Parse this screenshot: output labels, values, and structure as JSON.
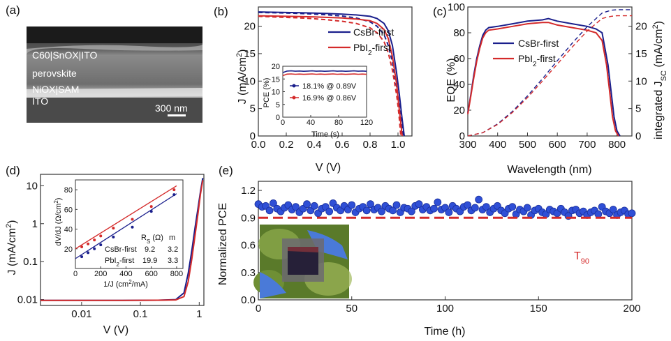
{
  "panels": {
    "a": {
      "label": "(a)",
      "layers": [
        "C60|SnOX|ITO",
        "perovskite",
        "NiOX|SAM",
        "ITO"
      ],
      "scale_bar": "300 nm"
    },
    "e_inset": {
      "description_visible": false
    }
  },
  "chart_data": [
    {
      "panel": "(b)",
      "type": "line",
      "xlabel": "V (V)",
      "ylabel": "J (mA/cm2)",
      "xlim": [
        0.0,
        1.1
      ],
      "ylim": [
        0,
        23.5
      ],
      "xticks": [
        "0.0",
        "0.2",
        "0.4",
        "0.6",
        "0.8",
        "1.0"
      ],
      "yticks": [
        "0",
        "5",
        "10",
        "15",
        "20"
      ],
      "legend_position": "top-right",
      "series": [
        {
          "name": "CsBr-first",
          "color": "#1a1f8c",
          "style": "solid",
          "x": [
            0,
            0.1,
            0.2,
            0.3,
            0.4,
            0.5,
            0.6,
            0.7,
            0.8,
            0.85,
            0.9,
            0.93,
            0.96,
            0.99,
            1.01,
            1.03,
            1.045
          ],
          "y": [
            22.6,
            22.55,
            22.5,
            22.45,
            22.4,
            22.3,
            22.2,
            22.05,
            21.8,
            21.4,
            20.5,
            19.2,
            16.5,
            11.5,
            7.5,
            3.0,
            0
          ]
        },
        {
          "name": "CsBr-first",
          "color": "#1a1f8c",
          "style": "dashed",
          "x": [
            0,
            0.1,
            0.2,
            0.3,
            0.4,
            0.5,
            0.6,
            0.7,
            0.8,
            0.85,
            0.9,
            0.93,
            0.96,
            0.99,
            1.01,
            1.025,
            1.04
          ],
          "y": [
            22.5,
            22.45,
            22.4,
            22.3,
            22.2,
            22.05,
            21.85,
            21.5,
            20.8,
            20.0,
            18.5,
            16.5,
            13.5,
            9.0,
            5.5,
            2.5,
            0
          ]
        },
        {
          "name": "PbI2-first",
          "color": "#d42a2a",
          "style": "solid",
          "x": [
            0,
            0.1,
            0.2,
            0.3,
            0.4,
            0.5,
            0.6,
            0.7,
            0.8,
            0.85,
            0.9,
            0.93,
            0.96,
            0.99,
            1.0,
            1.015,
            1.03
          ],
          "y": [
            21.9,
            21.85,
            21.8,
            21.75,
            21.7,
            21.6,
            21.5,
            21.3,
            21.0,
            20.5,
            19.4,
            17.8,
            14.5,
            9.5,
            7.0,
            3.5,
            0
          ]
        },
        {
          "name": "PbI2-first",
          "color": "#d42a2a",
          "style": "dashed",
          "x": [
            0,
            0.1,
            0.2,
            0.3,
            0.4,
            0.5,
            0.6,
            0.7,
            0.8,
            0.85,
            0.9,
            0.93,
            0.96,
            0.99,
            1.0,
            1.01,
            1.02
          ],
          "y": [
            21.8,
            21.7,
            21.6,
            21.5,
            21.35,
            21.15,
            20.9,
            20.5,
            19.7,
            18.8,
            17.2,
            15.2,
            12.0,
            7.5,
            5.5,
            3.0,
            0
          ]
        }
      ],
      "legend": [
        "CsBr-first",
        "PbI2-first"
      ],
      "inset": {
        "xlabel": "Time (s)",
        "ylabel": "PCE (%)",
        "xlim": [
          0,
          120
        ],
        "ylim": [
          0,
          20
        ],
        "xticks": [
          "0",
          "40",
          "80",
          "120"
        ],
        "yticks": [
          "0",
          "5",
          "10",
          "15",
          "20"
        ],
        "series": [
          {
            "name": "18.1% @ 0.89V",
            "color": "#1a1f8c",
            "value": 18.1
          },
          {
            "name": "16.9% @ 0.86V",
            "color": "#d42a2a",
            "value": 16.9
          }
        ]
      }
    },
    {
      "panel": "(c)",
      "type": "line",
      "xlabel": "Wavelength (nm)",
      "ylabel": "EQE (%)",
      "y2label": "integrated JSC (mA/cm2)",
      "xlim": [
        300,
        850
      ],
      "ylim": [
        0,
        100
      ],
      "y2lim": [
        0,
        23.5
      ],
      "xticks": [
        "300",
        "400",
        "500",
        "600",
        "700",
        "800"
      ],
      "yticks": [
        "0",
        "20",
        "40",
        "60",
        "80",
        "100"
      ],
      "y2ticks": [
        "0",
        "5",
        "10",
        "15",
        "20"
      ],
      "legend_position": "top-right",
      "legend": [
        "CsBr-first",
        "PbI2-first"
      ],
      "series": [
        {
          "name": "CsBr-first",
          "color": "#1a1f8c",
          "axis": "left",
          "x": [
            300,
            310,
            320,
            330,
            340,
            350,
            360,
            370,
            400,
            450,
            500,
            550,
            570,
            600,
            650,
            700,
            730,
            750,
            770,
            780,
            790,
            800,
            810
          ],
          "y": [
            18,
            32,
            47,
            60,
            70,
            78,
            82,
            84,
            85,
            87,
            89,
            90,
            91,
            89,
            87,
            85,
            83,
            80,
            55,
            35,
            15,
            4,
            0
          ]
        },
        {
          "name": "PbI2-first",
          "color": "#d42a2a",
          "axis": "left",
          "x": [
            300,
            310,
            320,
            330,
            340,
            350,
            360,
            370,
            400,
            450,
            500,
            550,
            570,
            600,
            650,
            700,
            730,
            750,
            765,
            775,
            785,
            795,
            805
          ],
          "y": [
            17,
            31,
            45,
            58,
            68,
            76,
            80,
            82,
            83,
            85,
            87,
            88,
            88,
            86,
            84,
            82,
            80,
            74,
            55,
            35,
            15,
            4,
            0
          ]
        },
        {
          "name": "CsBr-first",
          "color": "#1a1f8c",
          "axis": "right",
          "style": "dashed",
          "x": [
            300,
            350,
            400,
            450,
            500,
            550,
            600,
            650,
            700,
            750,
            780,
            800,
            850
          ],
          "y": [
            0,
            0.6,
            2.2,
            4.5,
            7.3,
            10.4,
            13.7,
            16.9,
            19.9,
            22.4,
            22.9,
            23.0,
            23.0
          ]
        },
        {
          "name": "PbI2-first",
          "color": "#d42a2a",
          "axis": "right",
          "style": "dashed",
          "x": [
            300,
            350,
            400,
            450,
            500,
            550,
            600,
            650,
            700,
            750,
            780,
            800,
            850
          ],
          "y": [
            0,
            0.6,
            2.1,
            4.3,
            7.0,
            10.0,
            13.1,
            16.2,
            19.1,
            21.4,
            21.8,
            21.9,
            21.9
          ]
        }
      ]
    },
    {
      "panel": "(d)",
      "type": "line",
      "xlabel": "V (V)",
      "ylabel": "J (mA/cm2)",
      "xscale": "log",
      "yscale": "log",
      "xlim": [
        0.002,
        1.2
      ],
      "ylim": [
        0.007,
        20
      ],
      "xticks": [
        "0.01",
        "0.1",
        "1"
      ],
      "yticks": [
        "0.01",
        "0.1",
        "1",
        "10"
      ],
      "series": [
        {
          "name": "CsBr-first",
          "color": "#1a1f8c",
          "x": [
            0.002,
            0.01,
            0.05,
            0.2,
            0.4,
            0.55,
            0.65,
            0.75,
            0.85,
            0.95,
            1.05,
            1.15
          ],
          "y": [
            0.0095,
            0.0095,
            0.0095,
            0.0096,
            0.01,
            0.015,
            0.05,
            0.2,
            0.8,
            2.5,
            7,
            16
          ]
        },
        {
          "name": "PbI2-first",
          "color": "#d42a2a",
          "x": [
            0.002,
            0.01,
            0.05,
            0.2,
            0.4,
            0.55,
            0.65,
            0.75,
            0.85,
            0.95,
            1.05,
            1.15
          ],
          "y": [
            0.0095,
            0.0095,
            0.0095,
            0.0096,
            0.0098,
            0.012,
            0.03,
            0.12,
            0.5,
            1.8,
            6,
            14
          ]
        }
      ],
      "inset": {
        "xlabel": "1/J (cm2/mA)",
        "ylabel": "dV/dJ (Ω/cm2)",
        "xlim": [
          0,
          850
        ],
        "ylim": [
          0,
          90
        ],
        "xticks": [
          "0",
          "200",
          "400",
          "600",
          "800"
        ],
        "yticks": [
          "20",
          "40",
          "60",
          "80"
        ],
        "table_header": [
          "",
          "RS (Ω)",
          "m"
        ],
        "table_rows": [
          [
            "CsBr-first",
            "9.2",
            "3.2"
          ],
          [
            "PbI2-first",
            "19.9",
            "3.3"
          ]
        ],
        "series": [
          {
            "name": "CsBr-first",
            "color": "#1a1f8c",
            "x": [
              50,
              100,
              150,
              200,
              300,
              450,
              600,
              780
            ],
            "y": [
              12,
              16,
              20,
              24,
              32,
              42,
              58,
              75
            ],
            "fit": [
              [
                0,
                10
              ],
              [
                800,
                76
              ]
            ]
          },
          {
            "name": "PbI2-first",
            "color": "#d42a2a",
            "x": [
              50,
              100,
              150,
              200,
              300,
              450,
              600,
              780
            ],
            "y": [
              22,
              25,
              29,
              33,
              41,
              50,
              63,
              80
            ],
            "fit": [
              [
                0,
                20
              ],
              [
                800,
                84
              ]
            ]
          }
        ]
      }
    },
    {
      "panel": "(e)",
      "type": "scatter",
      "xlabel": "Time (h)",
      "ylabel": "Normalized PCE",
      "xlim": [
        0,
        200
      ],
      "ylim": [
        0,
        1.3
      ],
      "xticks": [
        "0",
        "50",
        "100",
        "150",
        "200"
      ],
      "yticks": [
        "0.0",
        "0.3",
        "0.6",
        "0.9",
        "1.2"
      ],
      "threshold": {
        "label": "T90",
        "value": 0.9,
        "color": "#d42a2a"
      },
      "series": [
        {
          "name": "",
          "color": "#2f4fd6",
          "x": [
            0,
            2,
            4,
            6,
            8,
            10,
            12,
            14,
            16,
            18,
            20,
            22,
            24,
            26,
            28,
            30,
            32,
            34,
            36,
            38,
            40,
            42,
            44,
            46,
            48,
            50,
            52,
            54,
            56,
            58,
            60,
            62,
            64,
            66,
            68,
            70,
            72,
            74,
            76,
            78,
            80,
            82,
            84,
            86,
            88,
            90,
            92,
            94,
            96,
            98,
            100,
            102,
            104,
            106,
            108,
            110,
            112,
            114,
            116,
            118,
            120,
            122,
            124,
            126,
            128,
            130,
            132,
            134,
            136,
            138,
            140,
            142,
            144,
            146,
            148,
            150,
            152,
            154,
            156,
            158,
            160,
            162,
            164,
            166,
            168,
            170,
            172,
            174,
            176,
            178,
            180,
            182,
            184,
            186,
            188,
            190,
            192,
            194,
            196,
            198,
            200
          ],
          "y": [
            1.05,
            1.02,
            1.03,
            0.98,
            1.06,
            1.0,
            0.97,
            1.01,
            1.04,
            0.99,
            1.02,
            0.96,
            1.0,
            1.05,
            0.98,
            1.03,
            0.95,
            1.0,
            1.02,
            0.97,
            1.06,
            1.01,
            0.98,
            1.03,
            0.99,
            1.04,
            0.96,
            1.0,
            1.02,
            0.98,
            1.05,
            0.99,
            1.01,
            0.97,
            1.03,
            1.0,
            0.98,
            1.04,
            0.96,
            1.01,
            1.0,
            0.97,
            1.03,
            1.05,
            0.99,
            1.02,
            0.98,
            1.0,
            1.07,
            0.99,
            1.01,
            0.96,
            1.03,
            1.0,
            0.97,
            1.02,
            1.04,
            0.98,
            1.01,
            1.1,
            0.99,
            1.02,
            0.96,
            1.0,
            1.03,
            0.98,
            0.95,
            1.0,
            1.02,
            0.94,
            0.99,
            0.97,
            1.01,
            0.93,
            0.98,
            1.0,
            0.96,
            0.94,
            0.99,
            0.97,
            0.95,
            1.0,
            0.96,
            0.92,
            0.98,
            0.99,
            0.95,
            0.97,
            0.93,
            0.96,
            0.98,
            0.94,
            1.02,
            0.97,
            0.95,
            0.99,
            0.93,
            0.96,
            0.98,
            0.94,
            0.95
          ]
        }
      ]
    }
  ]
}
